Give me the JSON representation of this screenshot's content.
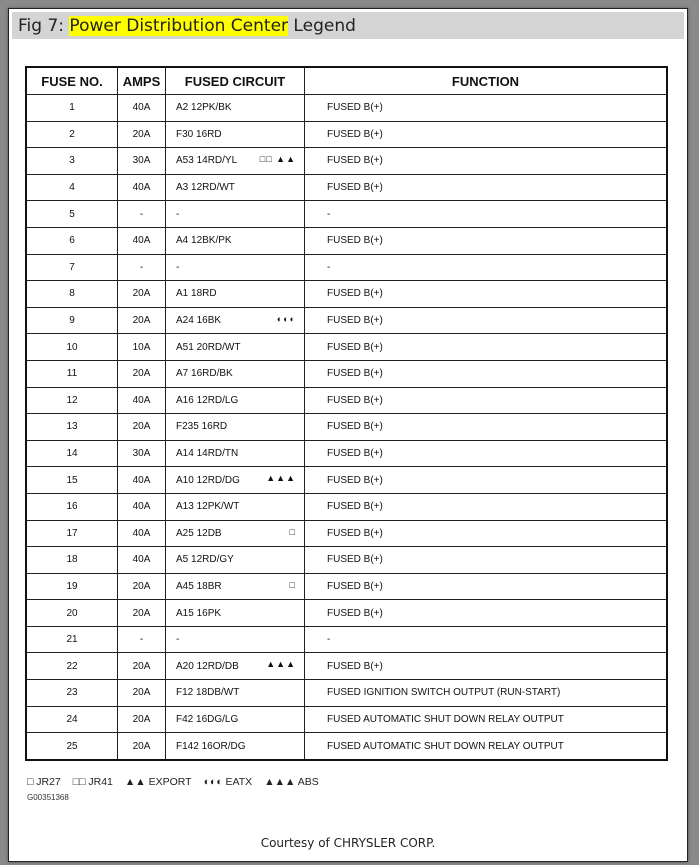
{
  "title": {
    "prefix": "Fig 7: ",
    "highlight": "Power Distribution Center",
    "suffix": " Legend"
  },
  "table": {
    "headers": [
      "FUSE NO.",
      "AMPS",
      "FUSED CIRCUIT",
      "FUNCTION"
    ],
    "rows": [
      {
        "no": "1",
        "amps": "40A",
        "circuit": "A2 12PK/BK",
        "sym": "",
        "function": "FUSED B(+)"
      },
      {
        "no": "2",
        "amps": "20A",
        "circuit": "F30 16RD",
        "sym": "",
        "function": "FUSED B(+)"
      },
      {
        "no": "3",
        "amps": "30A",
        "circuit": "A53 14RD/YL",
        "sym": "□□ ▲▲",
        "function": "FUSED B(+)"
      },
      {
        "no": "4",
        "amps": "40A",
        "circuit": "A3 12RD/WT",
        "sym": "",
        "function": "FUSED B(+)"
      },
      {
        "no": "5",
        "amps": "-",
        "circuit": "-",
        "sym": "",
        "function": "-"
      },
      {
        "no": "6",
        "amps": "40A",
        "circuit": "A4 12BK/PK",
        "sym": "",
        "function": "FUSED B(+)"
      },
      {
        "no": "7",
        "amps": "-",
        "circuit": "-",
        "sym": "",
        "function": "-"
      },
      {
        "no": "8",
        "amps": "20A",
        "circuit": "A1 18RD",
        "sym": "",
        "function": "FUSED B(+)"
      },
      {
        "no": "9",
        "amps": "20A",
        "circuit": "A24 16BK",
        "sym": "◐◐◐",
        "function": "FUSED B(+)"
      },
      {
        "no": "10",
        "amps": "10A",
        "circuit": "A51 20RD/WT",
        "sym": "",
        "function": "FUSED B(+)"
      },
      {
        "no": "11",
        "amps": "20A",
        "circuit": "A7 16RD/BK",
        "sym": "",
        "function": "FUSED B(+)"
      },
      {
        "no": "12",
        "amps": "40A",
        "circuit": "A16 12RD/LG",
        "sym": "",
        "function": "FUSED B(+)"
      },
      {
        "no": "13",
        "amps": "20A",
        "circuit": "F235 16RD",
        "sym": "",
        "function": "FUSED B(+)"
      },
      {
        "no": "14",
        "amps": "30A",
        "circuit": "A14 14RD/TN",
        "sym": "",
        "function": "FUSED B(+)"
      },
      {
        "no": "15",
        "amps": "40A",
        "circuit": "A10 12RD/DG",
        "sym": "▲▲▲",
        "function": "FUSED B(+)"
      },
      {
        "no": "16",
        "amps": "40A",
        "circuit": "A13 12PK/WT",
        "sym": "",
        "function": "FUSED B(+)"
      },
      {
        "no": "17",
        "amps": "40A",
        "circuit": "A25 12DB",
        "sym": "□",
        "function": "FUSED B(+)"
      },
      {
        "no": "18",
        "amps": "40A",
        "circuit": "A5 12RD/GY",
        "sym": "",
        "function": "FUSED B(+)"
      },
      {
        "no": "19",
        "amps": "20A",
        "circuit": "A45 18BR",
        "sym": "□",
        "function": "FUSED B(+)"
      },
      {
        "no": "20",
        "amps": "20A",
        "circuit": "A15 16PK",
        "sym": "",
        "function": "FUSED B(+)"
      },
      {
        "no": "21",
        "amps": "-",
        "circuit": "-",
        "sym": "",
        "function": "-"
      },
      {
        "no": "22",
        "amps": "20A",
        "circuit": "A20 12RD/DB",
        "sym": "▲▲▲",
        "function": "FUSED B(+)"
      },
      {
        "no": "23",
        "amps": "20A",
        "circuit": "F12 18DB/WT",
        "sym": "",
        "function": "FUSED IGNITION SWITCH OUTPUT (RUN-START)"
      },
      {
        "no": "24",
        "amps": "20A",
        "circuit": "F42 16DG/LG",
        "sym": "",
        "function": "FUSED AUTOMATIC SHUT DOWN RELAY OUTPUT"
      },
      {
        "no": "25",
        "amps": "20A",
        "circuit": "F142 16OR/DG",
        "sym": "",
        "function": "FUSED AUTOMATIC SHUT DOWN RELAY OUTPUT"
      }
    ]
  },
  "legend": [
    "□ JR27",
    "□□ JR41",
    "▲▲ EXPORT",
    "◐◐◐ EATX",
    "▲▲▲ ABS"
  ],
  "figure_code": "G00351368",
  "courtesy": "Courtesy of CHRYSLER CORP."
}
